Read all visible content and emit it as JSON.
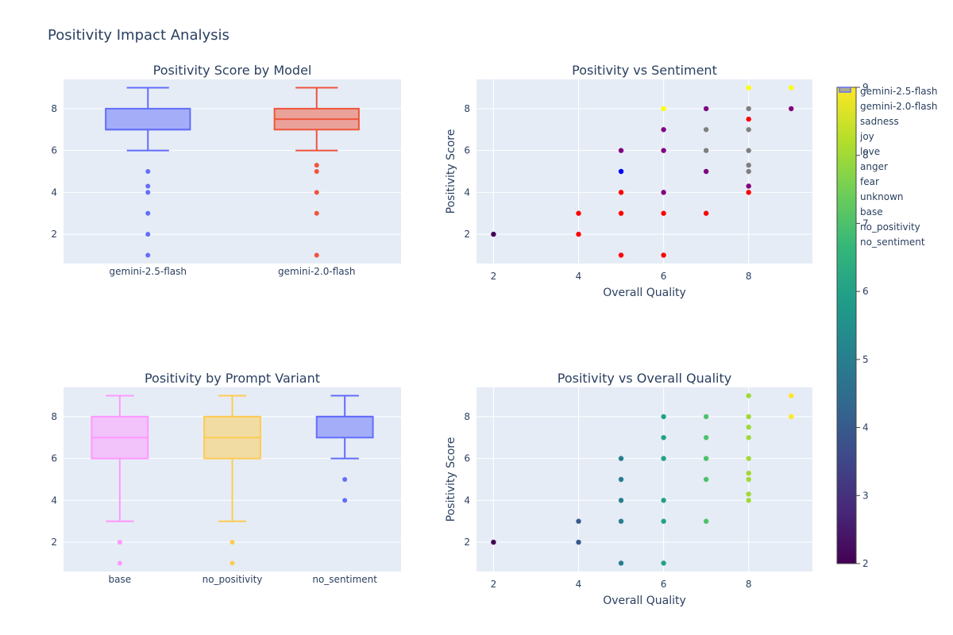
{
  "title": "Positivity Impact Analysis",
  "colors": {
    "gemini_2_5": "#636efa",
    "gemini_2_0": "#ef553b",
    "base": "#ff97ff",
    "no_positivity": "#fecb52",
    "no_sentiment": "#636efa",
    "plot_bg": "#e5ecf6",
    "grid": "#ffffff",
    "text": "#2a3f5f"
  },
  "legend": [
    "gemini-2.5-flash",
    "gemini-2.0-flash",
    "sadness",
    "joy",
    "love",
    "anger",
    "fear",
    "unknown",
    "base",
    "no_positivity",
    "no_sentiment"
  ],
  "colorbar": {
    "ticks": [
      "2",
      "3",
      "4",
      "5",
      "6",
      "7",
      "8",
      "9"
    ],
    "range": [
      2,
      9
    ],
    "colorscale": "viridis"
  },
  "chart_data": [
    {
      "type": "box",
      "title": "Positivity Score by Model",
      "yticks": [
        "2",
        "4",
        "6",
        "8"
      ],
      "ylim": [
        0.6,
        9.4
      ],
      "boxes": [
        {
          "name": "gemini-2.5-flash",
          "q1": 7,
          "median": 7,
          "q3": 8,
          "lowerfence": 6,
          "upperfence": 9,
          "outliers": [
            5,
            4.3,
            4,
            3,
            2,
            1
          ]
        },
        {
          "name": "gemini-2.0-flash",
          "q1": 7,
          "median": 7.5,
          "q3": 8,
          "lowerfence": 6,
          "upperfence": 9,
          "outliers": [
            5.3,
            5,
            4,
            3,
            1
          ]
        }
      ]
    },
    {
      "type": "scatter",
      "title": "Positivity vs Sentiment",
      "xlabel": "Overall Quality",
      "ylabel": "Positivity Score",
      "xticks": [
        "2",
        "4",
        "6",
        "8"
      ],
      "yticks": [
        "2",
        "4",
        "6",
        "8"
      ],
      "xlim": [
        1.6,
        9.5
      ],
      "ylim": [
        0.6,
        9.4
      ],
      "points": [
        {
          "x": 2,
          "y": 2,
          "c": "#440154"
        },
        {
          "x": 4,
          "y": 3,
          "c": "#ff0000"
        },
        {
          "x": 4,
          "y": 2,
          "c": "#ff0000"
        },
        {
          "x": 5,
          "y": 6,
          "c": "#800080"
        },
        {
          "x": 5,
          "y": 5,
          "c": "#0000ff"
        },
        {
          "x": 5,
          "y": 4,
          "c": "#ff0000"
        },
        {
          "x": 5,
          "y": 3,
          "c": "#ff0000"
        },
        {
          "x": 5,
          "y": 1,
          "c": "#ff0000"
        },
        {
          "x": 6,
          "y": 8,
          "c": "#ffff00"
        },
        {
          "x": 6,
          "y": 7,
          "c": "#800080"
        },
        {
          "x": 6,
          "y": 6,
          "c": "#800080"
        },
        {
          "x": 6,
          "y": 4,
          "c": "#800080"
        },
        {
          "x": 6,
          "y": 3,
          "c": "#ff0000"
        },
        {
          "x": 6,
          "y": 1,
          "c": "#ff0000"
        },
        {
          "x": 7,
          "y": 8,
          "c": "#800080"
        },
        {
          "x": 7,
          "y": 7,
          "c": "#808080"
        },
        {
          "x": 7,
          "y": 6,
          "c": "#808080"
        },
        {
          "x": 7,
          "y": 5,
          "c": "#800080"
        },
        {
          "x": 7,
          "y": 3,
          "c": "#ff0000"
        },
        {
          "x": 8,
          "y": 9,
          "c": "#ffff00"
        },
        {
          "x": 8,
          "y": 8,
          "c": "#808080"
        },
        {
          "x": 8,
          "y": 7.5,
          "c": "#ff0000"
        },
        {
          "x": 8,
          "y": 7,
          "c": "#808080"
        },
        {
          "x": 8,
          "y": 6,
          "c": "#808080"
        },
        {
          "x": 8,
          "y": 5.3,
          "c": "#808080"
        },
        {
          "x": 8,
          "y": 5,
          "c": "#808080"
        },
        {
          "x": 8,
          "y": 4.3,
          "c": "#800080"
        },
        {
          "x": 8,
          "y": 4,
          "c": "#ff0000"
        },
        {
          "x": 9,
          "y": 9,
          "c": "#ffff00"
        },
        {
          "x": 9,
          "y": 8,
          "c": "#800080"
        }
      ]
    },
    {
      "type": "box",
      "title": "Positivity by Prompt Variant",
      "yticks": [
        "2",
        "4",
        "6",
        "8"
      ],
      "ylim": [
        0.6,
        9.4
      ],
      "boxes": [
        {
          "name": "base",
          "q1": 6,
          "median": 7,
          "q3": 8,
          "lowerfence": 3,
          "upperfence": 9,
          "outliers": [
            2,
            1
          ]
        },
        {
          "name": "no_positivity",
          "q1": 6,
          "median": 7,
          "q3": 8,
          "lowerfence": 3,
          "upperfence": 9,
          "outliers": [
            2,
            1
          ]
        },
        {
          "name": "no_sentiment",
          "q1": 7,
          "median": 8,
          "q3": 8,
          "lowerfence": 6,
          "upperfence": 9,
          "outliers": [
            5,
            4
          ]
        }
      ]
    },
    {
      "type": "scatter",
      "title": "Positivity vs Overall Quality",
      "xlabel": "Overall Quality",
      "ylabel": "Positivity Score",
      "xticks": [
        "2",
        "4",
        "6",
        "8"
      ],
      "yticks": [
        "2",
        "4",
        "6",
        "8"
      ],
      "xlim": [
        1.6,
        9.5
      ],
      "ylim": [
        0.6,
        9.4
      ],
      "color_by": "x",
      "points": [
        {
          "x": 2,
          "y": 2
        },
        {
          "x": 4,
          "y": 3
        },
        {
          "x": 4,
          "y": 2
        },
        {
          "x": 5,
          "y": 6
        },
        {
          "x": 5,
          "y": 5
        },
        {
          "x": 5,
          "y": 4
        },
        {
          "x": 5,
          "y": 3
        },
        {
          "x": 5,
          "y": 1
        },
        {
          "x": 6,
          "y": 8
        },
        {
          "x": 6,
          "y": 7
        },
        {
          "x": 6,
          "y": 6
        },
        {
          "x": 6,
          "y": 4
        },
        {
          "x": 6,
          "y": 3
        },
        {
          "x": 6,
          "y": 1
        },
        {
          "x": 7,
          "y": 8
        },
        {
          "x": 7,
          "y": 7
        },
        {
          "x": 7,
          "y": 6
        },
        {
          "x": 7,
          "y": 5
        },
        {
          "x": 7,
          "y": 3
        },
        {
          "x": 8,
          "y": 9
        },
        {
          "x": 8,
          "y": 8
        },
        {
          "x": 8,
          "y": 7.5
        },
        {
          "x": 8,
          "y": 7
        },
        {
          "x": 8,
          "y": 6
        },
        {
          "x": 8,
          "y": 5.3
        },
        {
          "x": 8,
          "y": 5
        },
        {
          "x": 8,
          "y": 4.3
        },
        {
          "x": 8,
          "y": 4
        },
        {
          "x": 9,
          "y": 9
        },
        {
          "x": 9,
          "y": 8
        }
      ]
    }
  ]
}
